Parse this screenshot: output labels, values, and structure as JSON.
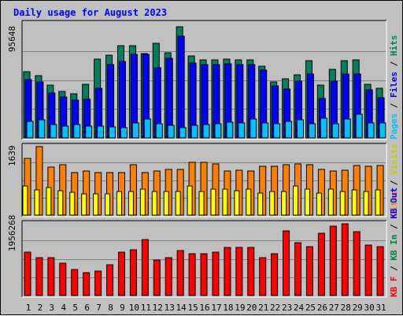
{
  "title": "Daily usage for August 2023",
  "colors": {
    "hits": "#00805c",
    "files": "#0000ff",
    "pages": "#00c0ff",
    "visits": "#ffff00",
    "sites": "#ff8000",
    "kb_f": "#ff0000",
    "kb_in": "#008040",
    "kb_out": "#0000ff"
  },
  "panels": {
    "top": {
      "max_label": "95648",
      "right_label": [
        {
          "text": "Pages",
          "color": "#00c0ff"
        },
        {
          "text": " / ",
          "color": "#000"
        },
        {
          "text": "Files",
          "color": "#0000ff"
        },
        {
          "text": " / ",
          "color": "#000"
        },
        {
          "text": "Hits",
          "color": "#00805c"
        }
      ]
    },
    "middle": {
      "max_label": "1639",
      "right_label": [
        {
          "text": "Sites",
          "color": "#ff8000"
        },
        {
          "text": " / ",
          "color": "#000"
        },
        {
          "text": "Visits",
          "color": "#c8c800"
        }
      ]
    },
    "bottom": {
      "max_label": "1956268",
      "right_label": [
        {
          "text": "KB F",
          "color": "#ff0000"
        },
        {
          "text": " / ",
          "color": "#000"
        },
        {
          "text": "KB In",
          "color": "#008040"
        },
        {
          "text": " / ",
          "color": "#000"
        },
        {
          "text": "KB Out",
          "color": "#0000ff"
        }
      ]
    }
  },
  "chart_data": {
    "type": "bar",
    "title": "Daily usage for August 2023",
    "categories": [
      "1",
      "2",
      "3",
      "4",
      "5",
      "6",
      "7",
      "8",
      "9",
      "10",
      "11",
      "12",
      "13",
      "14",
      "15",
      "16",
      "17",
      "18",
      "19",
      "20",
      "21",
      "22",
      "23",
      "24",
      "25",
      "26",
      "27",
      "28",
      "29",
      "30",
      "31"
    ],
    "weekend_days": [
      "5",
      "6",
      "12",
      "13",
      "19",
      "20",
      "26",
      "27"
    ],
    "panels": [
      {
        "name": "top",
        "max": 95648,
        "ylim": [
          0,
          95648
        ],
        "series": [
          {
            "name": "Hits",
            "values": [
              55400,
              51800,
              44000,
              38800,
              37000,
              44600,
              66200,
              69400,
              77000,
              77000,
              70400,
              79200,
              71000,
              92800,
              68800,
              65600,
              65600,
              66200,
              65000,
              65600,
              60000,
              46600,
              49200,
              53000,
              64700,
              44000,
              57400,
              64700,
              65400,
              44700,
              41800
            ]
          },
          {
            "name": "Files",
            "values": [
              49000,
              47000,
              37400,
              34600,
              31400,
              32600,
              41400,
              61400,
              63800,
              70000,
              70000,
              59000,
              66600,
              84800,
              62600,
              61400,
              61400,
              62000,
              61400,
              61400,
              57000,
              43400,
              40800,
              47400,
              53400,
              33200,
              47400,
              53400,
              53400,
              40200,
              33400
            ]
          },
          {
            "name": "Pages",
            "values": [
              14000,
              15400,
              11400,
              9600,
              11400,
              9600,
              9800,
              9000,
              8400,
              12600,
              15800,
              11800,
              10800,
              8800,
              10400,
              11000,
              12200,
              13200,
              12800,
              15600,
              12800,
              12200,
              13800,
              15200,
              11800,
              16400,
              11800,
              15600,
              20000,
              12400,
              12600
            ]
          }
        ]
      },
      {
        "name": "middle",
        "max": 1639,
        "ylim": [
          0,
          1639
        ],
        "series": [
          {
            "name": "Sites",
            "values": [
              1360,
              1639,
              1140,
              1200,
              1010,
              1060,
              1020,
              1010,
              1010,
              1210,
              1010,
              1060,
              1100,
              1100,
              1260,
              1260,
              1220,
              1060,
              1080,
              1060,
              1160,
              1160,
              1200,
              1220,
              1200,
              1100,
              1060,
              1080,
              1180,
              1160,
              1180
            ]
          },
          {
            "name": "Visits",
            "values": [
              700,
              600,
              660,
              580,
              550,
              500,
              510,
              510,
              560,
              560,
              620,
              560,
              560,
              560,
              700,
              560,
              620,
              620,
              580,
              620,
              520,
              560,
              560,
              700,
              620,
              520,
              620,
              560,
              600,
              560,
              600
            ]
          }
        ]
      },
      {
        "name": "bottom",
        "max": 1956268,
        "ylim": [
          0,
          1956268
        ],
        "series": [
          {
            "name": "KB F",
            "values": [
              1190000,
              1030000,
              1030000,
              880000,
              720000,
              620000,
              670000,
              840000,
              1190000,
              1240000,
              1530000,
              970000,
              1030000,
              1220000,
              1140000,
              1140000,
              1190000,
              1320000,
              1320000,
              1320000,
              1030000,
              1140000,
              1770000,
              1430000,
              1330000,
              1690000,
              1890000,
              1956268,
              1740000,
              1380000,
              1330000
            ]
          }
        ]
      }
    ]
  }
}
